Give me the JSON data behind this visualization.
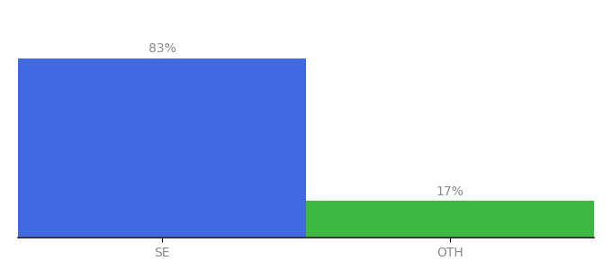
{
  "categories": [
    "SE",
    "OTH"
  ],
  "values": [
    83,
    17
  ],
  "bar_colors": [
    "#4169e1",
    "#3cb843"
  ],
  "value_labels": [
    "83%",
    "17%"
  ],
  "ylim": [
    0,
    100
  ],
  "bar_width": 0.5,
  "background_color": "#ffffff",
  "label_fontsize": 10,
  "tick_fontsize": 10,
  "label_color": "#888888",
  "tick_color": "#888888",
  "spine_color": "#222222",
  "x_positions": [
    0.25,
    0.75
  ],
  "xlim": [
    0.0,
    1.0
  ]
}
